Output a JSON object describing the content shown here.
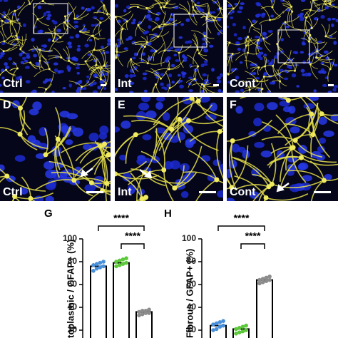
{
  "panels": {
    "top": [
      {
        "label": "Ctrl"
      },
      {
        "label": "Int"
      },
      {
        "label": "Cont"
      }
    ],
    "zoom": [
      {
        "letter": "D",
        "label": "Ctrl"
      },
      {
        "letter": "E",
        "label": "Int"
      },
      {
        "letter": "F",
        "label": "Cont"
      }
    ]
  },
  "chart_data": [
    {
      "type": "bar",
      "panel": "G",
      "ylabel": "toplasmic / GFAP+ (%)",
      "values": [
        76,
        79,
        36
      ],
      "colors": [
        "#4a90d9",
        "#5cc83a",
        "#8c8c8c"
      ],
      "points": [
        [
          72,
          74,
          75,
          76,
          77,
          78,
          79,
          80
        ],
        [
          76,
          77,
          78,
          79,
          80,
          81,
          82,
          83
        ],
        [
          33,
          34,
          35,
          35,
          36,
          37,
          37,
          38
        ]
      ],
      "ylim": [
        0,
        100
      ],
      "yticks": [
        20,
        40,
        60,
        80,
        100
      ],
      "annotations": [
        {
          "text": "****",
          "from": 0,
          "to": 2
        },
        {
          "text": "****",
          "from": 1,
          "to": 2
        }
      ]
    },
    {
      "type": "bar",
      "panel": "H",
      "ylabel": "Fibrous / GFAP+ (%)",
      "values": [
        24,
        21,
        64
      ],
      "colors": [
        "#4a90d9",
        "#5cc83a",
        "#8c8c8c"
      ],
      "points": [
        [
          20,
          21,
          23,
          24,
          25,
          26,
          27,
          28
        ],
        [
          17,
          18,
          19,
          20,
          21,
          22,
          23,
          24
        ],
        [
          61,
          62,
          63,
          64,
          64,
          65,
          66,
          67
        ]
      ],
      "ylim": [
        0,
        100
      ],
      "yticks": [
        20,
        40,
        60,
        80,
        100
      ],
      "annotations": [
        {
          "text": "****",
          "from": 0,
          "to": 2
        },
        {
          "text": "****",
          "from": 1,
          "to": 2
        }
      ]
    }
  ]
}
